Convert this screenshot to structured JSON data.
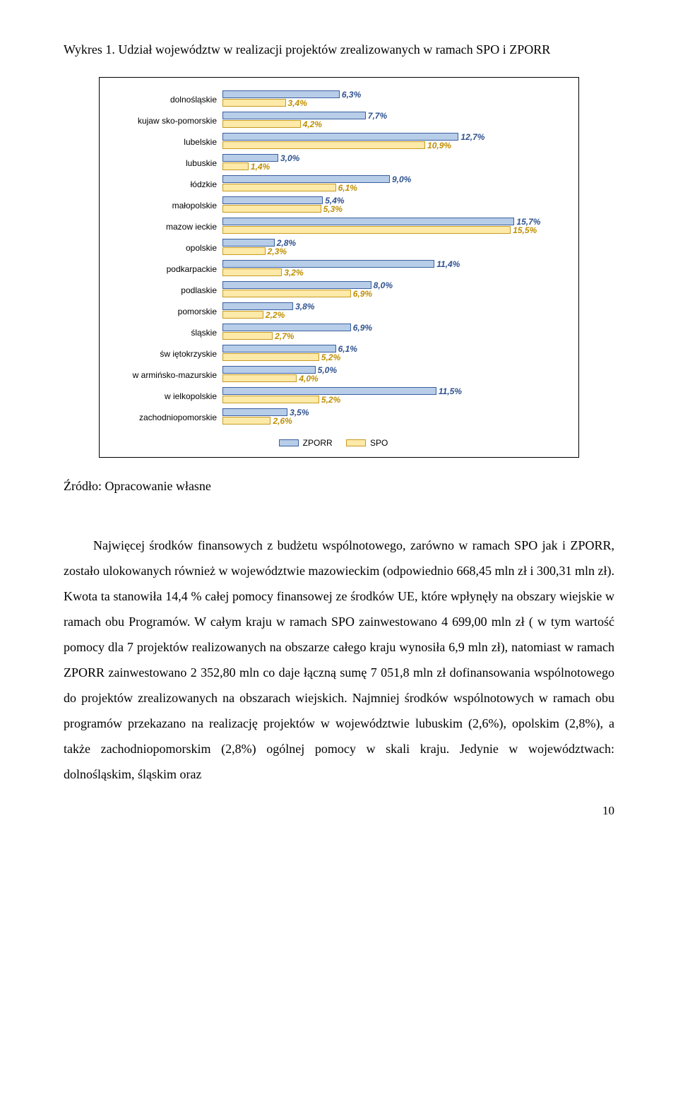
{
  "caption": "Wykres 1. Udział województw w realizacji projektów zrealizowanych w ramach SPO i ZPORR",
  "source": "Źródło: Opracowanie własne",
  "body": "Najwięcej środków finansowych z budżetu wspólnotowego, zarówno w ramach SPO jak i ZPORR, zostało ulokowanych również w województwie mazowieckim (odpowiednio 668,45 mln zł i 300,31 mln zł). Kwota ta stanowiła 14,4 % całej pomocy finansowej ze środków UE, które wpłynęły na obszary wiejskie w ramach obu Programów. W całym kraju w ramach SPO  zainwestowano 4 699,00 mln zł ( w tym wartość pomocy dla 7 projektów realizowanych na obszarze całego kraju wynosiła 6,9 mln zł), natomiast w ramach ZPORR zainwestowano 2 352,80 mln co daje łączną sumę 7 051,8 mln zł dofinansowania wspólnotowego do projektów zrealizowanych na obszarach wiejskich. Najmniej środków wspólnotowych w ramach obu programów przekazano na realizację projektów w województwie lubuskim (2,6%), opolskim (2,8%), a także zachodniopomorskim (2,8%) ogólnej pomocy w skali kraju. Jedynie w województwach: dolnośląskim, śląskim oraz",
  "page_number": "10",
  "chart": {
    "type": "bar",
    "xmax": 18.0,
    "zporr_fill": "#b7cde8",
    "zporr_border": "#3a5fa0",
    "spo_fill": "#fde9a8",
    "spo_border": "#c79b20",
    "zporr_text_color": "#2f528f",
    "spo_text_color": "#bf8f00",
    "legend": {
      "zporr": "ZPORR",
      "spo": "SPO"
    },
    "items": [
      {
        "label": "dolnośląskie",
        "zporr": 6.3,
        "spo": 3.4,
        "zporr_txt": "6,3%",
        "spo_txt": "3,4%"
      },
      {
        "label": "kujaw sko-pomorskie",
        "zporr": 7.7,
        "spo": 4.2,
        "zporr_txt": "7,7%",
        "spo_txt": "4,2%"
      },
      {
        "label": "lubelskie",
        "zporr": 12.7,
        "spo": 10.9,
        "zporr_txt": "12,7%",
        "spo_txt": "10,9%"
      },
      {
        "label": "lubuskie",
        "zporr": 3.0,
        "spo": 1.4,
        "zporr_txt": "3,0%",
        "spo_txt": "1,4%"
      },
      {
        "label": "łódzkie",
        "zporr": 9.0,
        "spo": 6.1,
        "zporr_txt": "9,0%",
        "spo_txt": "6,1%"
      },
      {
        "label": "małopolskie",
        "zporr": 5.4,
        "spo": 5.3,
        "zporr_txt": "5,4%",
        "spo_txt": "5,3%"
      },
      {
        "label": "mazow ieckie",
        "zporr": 15.7,
        "spo": 15.5,
        "zporr_txt": "15,7%",
        "spo_txt": "15,5%"
      },
      {
        "label": "opolskie",
        "zporr": 2.8,
        "spo": 2.3,
        "zporr_txt": "2,8%",
        "spo_txt": "2,3%"
      },
      {
        "label": "podkarpackie",
        "zporr": 11.4,
        "spo": 3.2,
        "zporr_txt": "11,4%",
        "spo_txt": "3,2%"
      },
      {
        "label": "podlaskie",
        "zporr": 8.0,
        "spo": 6.9,
        "zporr_txt": "8,0%",
        "spo_txt": "6,9%"
      },
      {
        "label": "pomorskie",
        "zporr": 3.8,
        "spo": 2.2,
        "zporr_txt": "3,8%",
        "spo_txt": "2,2%"
      },
      {
        "label": "śląskie",
        "zporr": 6.9,
        "spo": 2.7,
        "zporr_txt": "6,9%",
        "spo_txt": "2,7%"
      },
      {
        "label": "św iętokrzyskie",
        "zporr": 6.1,
        "spo": 5.2,
        "zporr_txt": "6,1%",
        "spo_txt": "5,2%"
      },
      {
        "label": "w armińsko-mazurskie",
        "zporr": 5.0,
        "spo": 4.0,
        "zporr_txt": "5,0%",
        "spo_txt": "4,0%"
      },
      {
        "label": "w ielkopolskie",
        "zporr": 11.5,
        "spo": 5.2,
        "zporr_txt": "11,5%",
        "spo_txt": "5,2%"
      },
      {
        "label": "zachodniopomorskie",
        "zporr": 3.5,
        "spo": 2.6,
        "zporr_txt": "3,5%",
        "spo_txt": "2,6%"
      }
    ]
  }
}
